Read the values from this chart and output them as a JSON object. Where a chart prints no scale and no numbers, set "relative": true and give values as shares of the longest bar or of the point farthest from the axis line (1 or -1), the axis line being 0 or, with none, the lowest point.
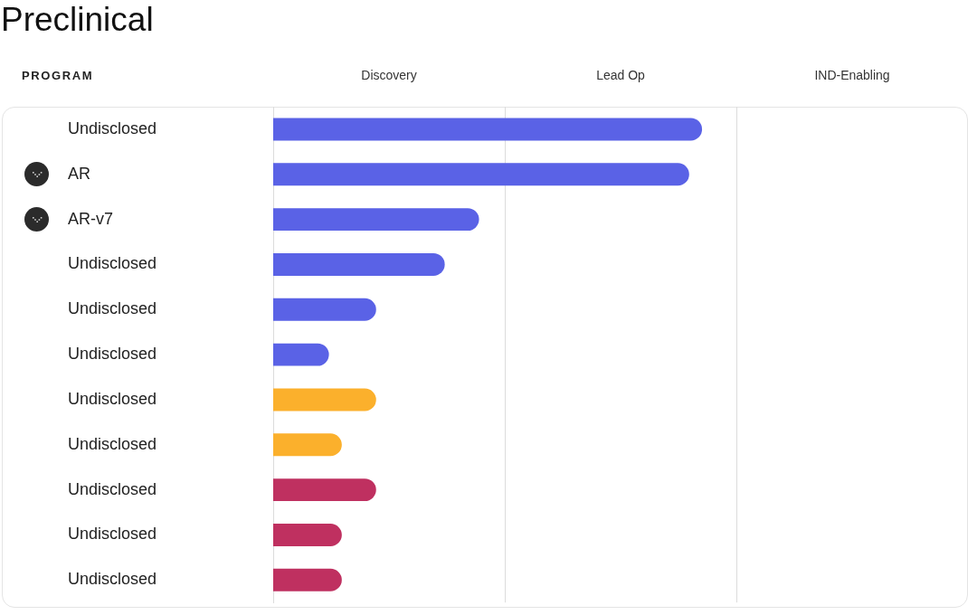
{
  "chart_data": {
    "type": "bar",
    "orientation": "horizontal",
    "relative": true,
    "title": "Preclinical",
    "ylabel": "PROGRAM",
    "annotations": [
      "Discovery",
      "Lead Op",
      "IND-Enabling"
    ],
    "categories": [
      "Undisclosed",
      "AR",
      "AR-v7",
      "Undisclosed",
      "Undisclosed",
      "Undisclosed",
      "Undisclosed",
      "Undisclosed",
      "Undisclosed",
      "Undisclosed",
      "Undisclosed"
    ],
    "values": [
      1,
      0.97,
      0.48,
      0.4,
      0.24,
      0.13,
      0.24,
      0.16,
      0.24,
      0.16,
      0.16
    ],
    "colors": [
      "#5a62e6",
      "#5a62e6",
      "#5a62e6",
      "#5a62e6",
      "#5a62e6",
      "#5a62e6",
      "#fbb02c",
      "#fbb02c",
      "#bf3060",
      "#bf3060",
      "#bf3060"
    ],
    "ref_lines": [
      {
        "axis": "x",
        "value": 0.54
      },
      {
        "axis": "x",
        "value": 1.08
      }
    ]
  }
}
